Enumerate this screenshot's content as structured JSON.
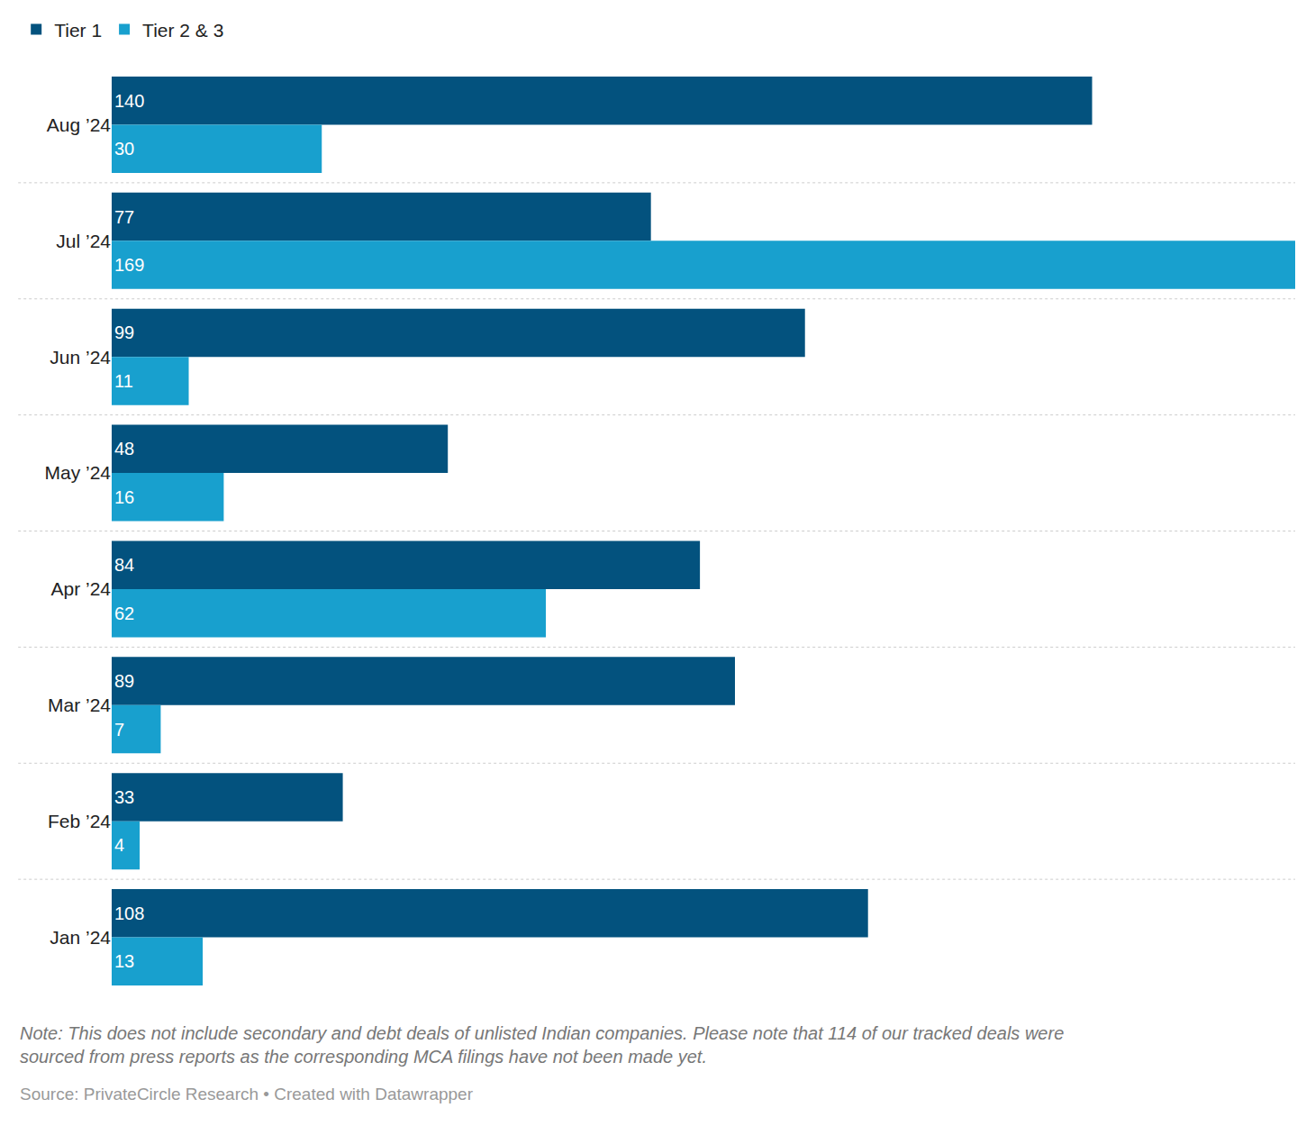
{
  "chart_data": {
    "type": "bar",
    "orientation": "horizontal",
    "categories": [
      "Aug ’24",
      "Jul ’24",
      "Jun ’24",
      "May ’24",
      "Apr ’24",
      "Mar ’24",
      "Feb ’24",
      "Jan ’24"
    ],
    "series": [
      {
        "name": "Tier 1",
        "color": "#03527e",
        "values": [
          140,
          77,
          99,
          48,
          84,
          89,
          33,
          108
        ]
      },
      {
        "name": "Tier 2 & 3",
        "color": "#18a0ce",
        "values": [
          30,
          169,
          11,
          16,
          62,
          7,
          4,
          13
        ]
      }
    ],
    "xlim": [
      0,
      169
    ],
    "data_labels": true,
    "tick_labels": "y",
    "legend": "top-left",
    "grid": false,
    "note": [
      "Note: This does not include secondary and debt deals of unlisted Indian companies. Please note that 114 of our tracked deals were",
      "sourced from press reports as the corresponding MCA filings have not been made yet."
    ],
    "source": "Source: PrivateCircle Research • Created with Datawrapper"
  }
}
